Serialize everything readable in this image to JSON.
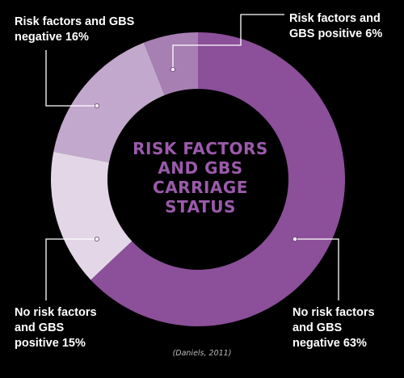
{
  "chart_data": {
    "type": "pie",
    "title": "RISK FACTORS\nAND GBS\nCARRIAGE\nSTATUS",
    "slices": [
      {
        "label": "Risk factors and GBS positive 6%",
        "value": 6,
        "color": "#a77fb2"
      },
      {
        "label": "Risk factors and GBS negative 16%",
        "value": 16,
        "color": "#c3a8cd"
      },
      {
        "label": "No risk factors and GBS positive 15%",
        "value": 15,
        "color": "#e3d7e7"
      },
      {
        "label": "No risk factors and GBS negative 63%",
        "value": 63,
        "color": "#8c4f9a"
      }
    ],
    "label_lines": {
      "rf_pos": [
        "Risk factors and",
        "GBS positive 6%"
      ],
      "rf_neg": [
        "Risk factors and GBS",
        "negative 16%"
      ],
      "nrf_pos": [
        "No risk factors",
        "and GBS",
        "positive 15%"
      ],
      "nrf_neg": [
        "No risk factors",
        "and GBS",
        "negative 63%"
      ]
    },
    "source": "(Daniels, 2011)"
  },
  "colors": {
    "background": "#000000",
    "title": "#9b5aab",
    "leader": "#ffffff"
  }
}
